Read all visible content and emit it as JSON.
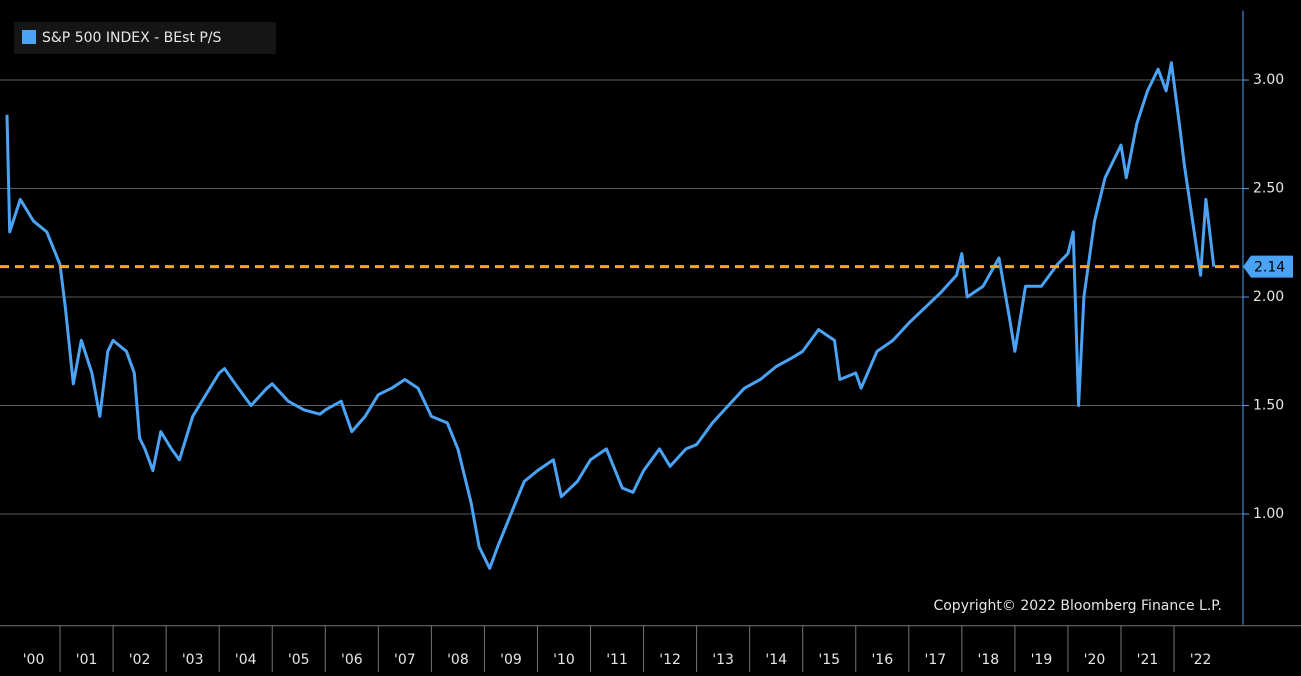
{
  "chart_data": {
    "type": "line",
    "series": [
      {
        "name": "S&P 500 INDEX - BEst P/S",
        "color": "#4aa3f5",
        "values": [
          2.84,
          2.3,
          2.45,
          2.35,
          2.3,
          2.15,
          1.95,
          1.6,
          1.8,
          1.65,
          1.45,
          1.75,
          1.8,
          1.75,
          1.65,
          1.35,
          1.3,
          1.2,
          1.38,
          1.3,
          1.25,
          1.45,
          1.55,
          1.65,
          1.67,
          1.6,
          1.5,
          1.58,
          1.6,
          1.52,
          1.48,
          1.46,
          1.48,
          1.52,
          1.38,
          1.45,
          1.55,
          1.58,
          1.62,
          1.58,
          1.45,
          1.42,
          1.3,
          1.05,
          0.85,
          0.75,
          0.85,
          1.0,
          1.15,
          1.2,
          1.25,
          1.08,
          1.15,
          1.25,
          1.3,
          1.12,
          1.1,
          1.2,
          1.3,
          1.22,
          1.3,
          1.32,
          1.42,
          1.5,
          1.58,
          1.62,
          1.68,
          1.72,
          1.75,
          1.85,
          1.8,
          1.62,
          1.65,
          1.58,
          1.75,
          1.8,
          1.88,
          1.95,
          2.02,
          2.1,
          2.2,
          2.0,
          2.05,
          2.18,
          1.9,
          1.75,
          2.05,
          2.05,
          2.15,
          2.2,
          2.3,
          1.5,
          2.0,
          2.35,
          2.55,
          2.65,
          2.7,
          2.55,
          2.8,
          2.95,
          3.05,
          2.95,
          3.08,
          2.8,
          2.6,
          2.35,
          2.1,
          2.45,
          2.14
        ]
      }
    ],
    "x": [
      2000.0,
      2000.05,
      2000.25,
      2000.5,
      2000.75,
      2001.0,
      2001.1,
      2001.25,
      2001.4,
      2001.6,
      2001.75,
      2001.9,
      2002.0,
      2002.25,
      2002.4,
      2002.5,
      2002.6,
      2002.75,
      2002.9,
      2003.1,
      2003.25,
      2003.5,
      2003.75,
      2004.0,
      2004.1,
      2004.3,
      2004.6,
      2004.9,
      2005.0,
      2005.3,
      2005.6,
      2005.9,
      2006.0,
      2006.3,
      2006.5,
      2006.75,
      2007.0,
      2007.25,
      2007.5,
      2007.75,
      2008.0,
      2008.3,
      2008.5,
      2008.75,
      2008.9,
      2009.1,
      2009.25,
      2009.5,
      2009.75,
      2010.0,
      2010.3,
      2010.45,
      2010.75,
      2011.0,
      2011.3,
      2011.6,
      2011.8,
      2012.0,
      2012.3,
      2012.5,
      2012.8,
      2013.0,
      2013.3,
      2013.6,
      2013.9,
      2014.2,
      2014.5,
      2014.8,
      2015.0,
      2015.3,
      2015.6,
      2015.7,
      2016.0,
      2016.1,
      2016.4,
      2016.7,
      2017.0,
      2017.3,
      2017.6,
      2017.9,
      2018.0,
      2018.1,
      2018.4,
      2018.7,
      2018.9,
      2019.0,
      2019.2,
      2019.5,
      2019.8,
      2020.0,
      2020.1,
      2020.2,
      2020.3,
      2020.5,
      2020.7,
      2020.9,
      2021.0,
      2021.1,
      2021.3,
      2021.5,
      2021.7,
      2021.85,
      2021.95,
      2022.1,
      2022.2,
      2022.35,
      2022.5,
      2022.6,
      2022.75
    ],
    "xlim": [
      2000,
      2023.3
    ],
    "xticks": [
      {
        "value": 2000,
        "label": "'00"
      },
      {
        "value": 2001,
        "label": "'01"
      },
      {
        "value": 2002,
        "label": "'02"
      },
      {
        "value": 2003,
        "label": "'03"
      },
      {
        "value": 2004,
        "label": "'04"
      },
      {
        "value": 2005,
        "label": "'05"
      },
      {
        "value": 2006,
        "label": "'06"
      },
      {
        "value": 2007,
        "label": "'07"
      },
      {
        "value": 2008,
        "label": "'08"
      },
      {
        "value": 2009,
        "label": "'09"
      },
      {
        "value": 2010,
        "label": "'10"
      },
      {
        "value": 2011,
        "label": "'11"
      },
      {
        "value": 2012,
        "label": "'12"
      },
      {
        "value": 2013,
        "label": "'13"
      },
      {
        "value": 2014,
        "label": "'14"
      },
      {
        "value": 2015,
        "label": "'15"
      },
      {
        "value": 2016,
        "label": "'16"
      },
      {
        "value": 2017,
        "label": "'17"
      },
      {
        "value": 2018,
        "label": "'18"
      },
      {
        "value": 2019,
        "label": "'19"
      },
      {
        "value": 2020,
        "label": "'20"
      },
      {
        "value": 2021,
        "label": "'21"
      },
      {
        "value": 2022,
        "label": "'22"
      }
    ],
    "ylim": [
      0.49,
      3.32
    ],
    "yticks": [
      {
        "value": 1,
        "label": "1.00"
      },
      {
        "value": 1.5,
        "label": "1.50"
      },
      {
        "value": 2,
        "label": "2.00"
      },
      {
        "value": 2.5,
        "label": "2.50"
      },
      {
        "value": 3,
        "label": "3.00"
      }
    ],
    "grid": true,
    "hline": 2.14,
    "hline_color": "#f5a623",
    "legend": "upper left",
    "annotation": "Copyright© 2022 Bloomberg Finance L.P."
  }
}
